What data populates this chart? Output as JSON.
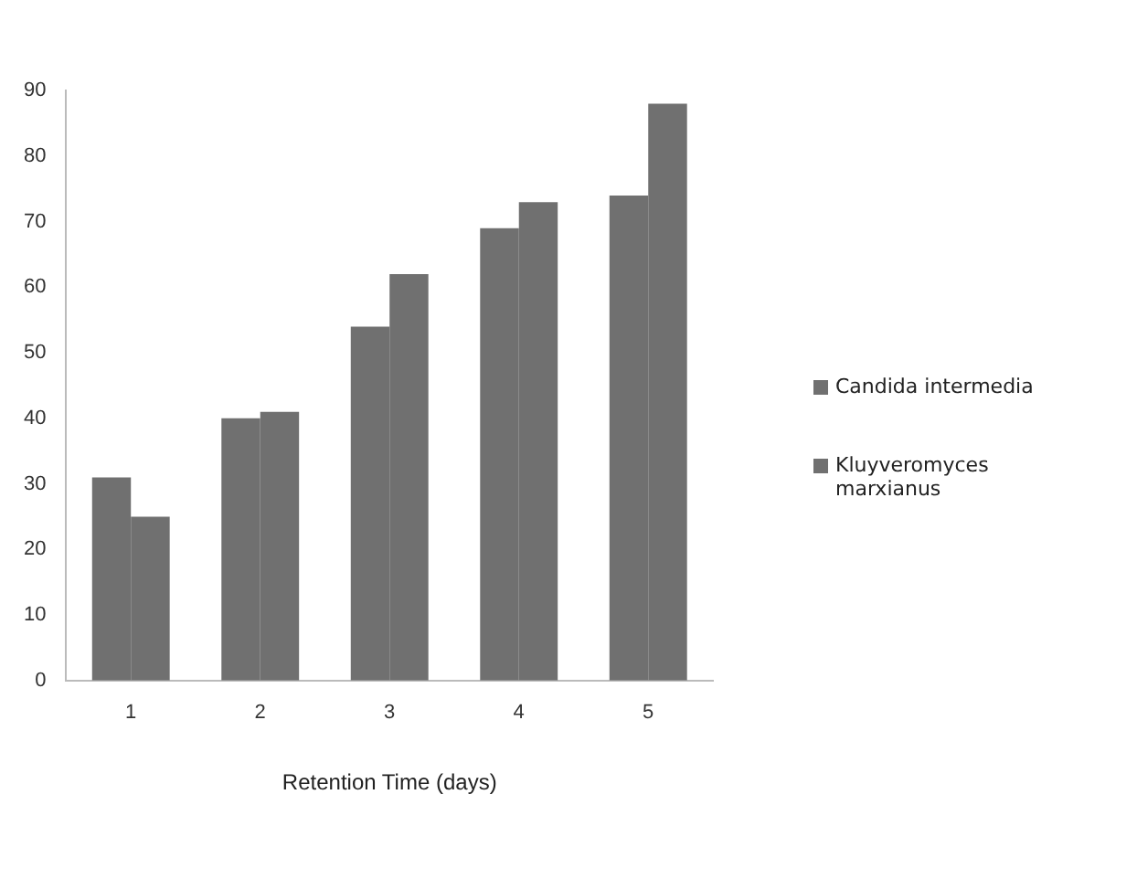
{
  "chart_data": {
    "type": "bar",
    "xlabel": "Retention Time (days)",
    "categories": [
      "1",
      "2",
      "3",
      "4",
      "5"
    ],
    "series": [
      {
        "name": "Candida intermedia",
        "color": "#707070",
        "values": [
          31,
          40,
          54,
          69,
          74
        ]
      },
      {
        "name": "Kluyveromyces marxianus",
        "color": "#707070",
        "values": [
          25,
          41,
          62,
          73,
          88
        ]
      }
    ],
    "ylim": [
      0,
      90
    ],
    "yticks": [
      0,
      10,
      20,
      30,
      40,
      50,
      60,
      70,
      80,
      90
    ],
    "grid": false,
    "legend": "right"
  }
}
